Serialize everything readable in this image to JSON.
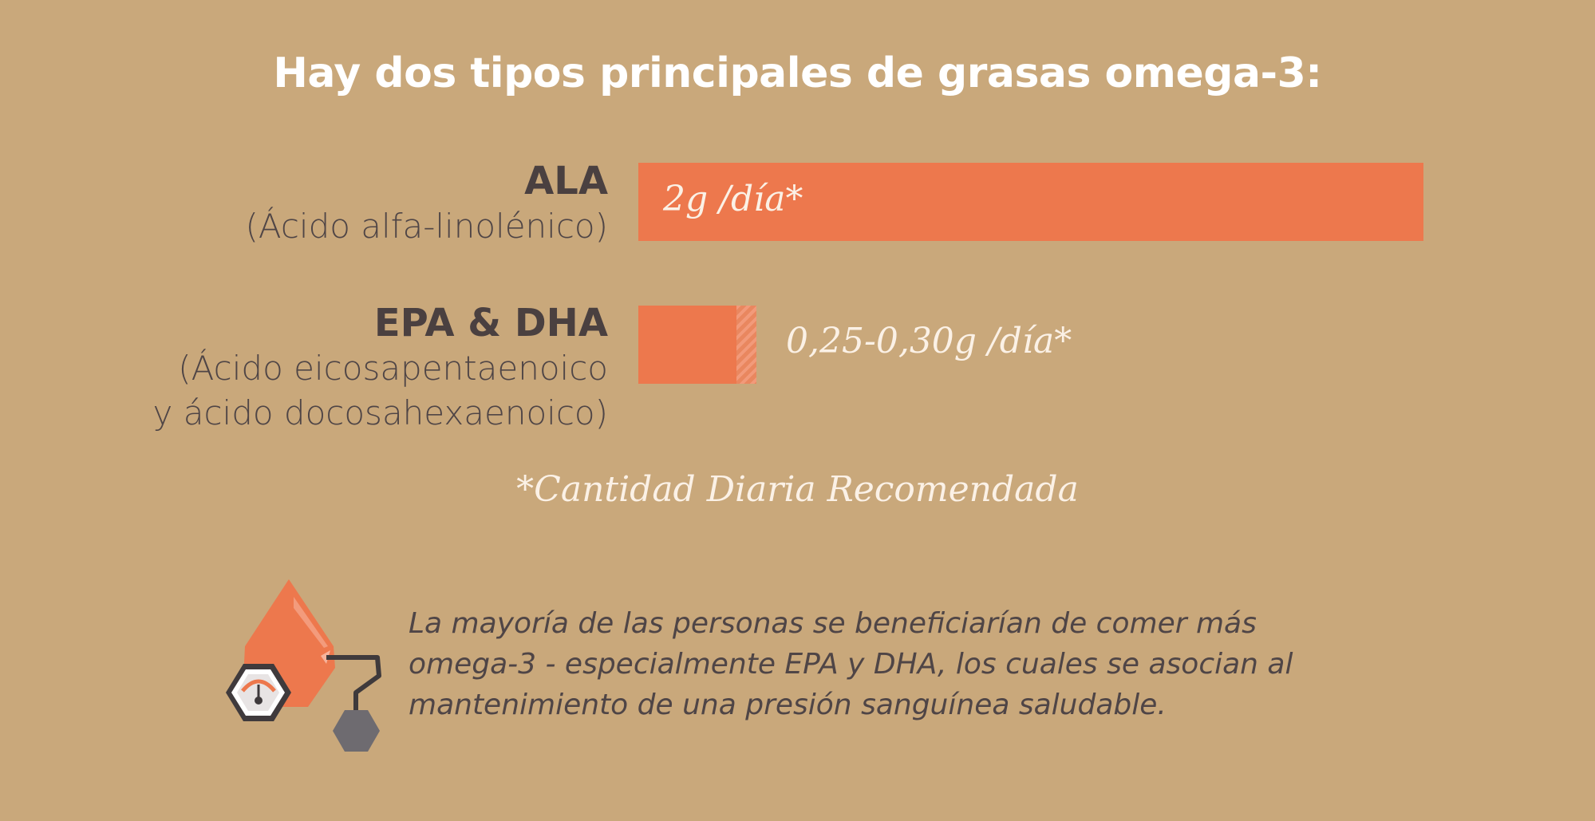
{
  "chart_data": {
    "type": "bar",
    "orientation": "horizontal",
    "title": "Hay dos tipos principales de grasas omega-3:",
    "unit": "g/día",
    "xlim": [
      0,
      2
    ],
    "categories": [
      {
        "code": "ALA",
        "full_name_lines": [
          "(Ácido alfa-linolénico)"
        ],
        "value": 2.0,
        "label": "2g /día*"
      },
      {
        "code": "EPA & DHA",
        "full_name_lines": [
          "(Ácido eicosapentaenoico",
          "y ácido docosahexaenoico)"
        ],
        "value": [
          0.25,
          0.3
        ],
        "label": "0,25-0,30g /día*"
      }
    ],
    "footnote": "*Cantidad Diaria Recomendada",
    "colors": {
      "bar": "#ed784d",
      "range_hatch": "#f29a7a",
      "background": "#c9a87b"
    }
  },
  "note": {
    "icon": "blood-pressure-drop-icon",
    "lines": [
      "La mayoría de las personas se beneficiarían de comer más",
      "omega-3 - especialmente EPA y DHA, los cuales se asocian al",
      "mantenimiento de una presión sanguínea saludable."
    ]
  }
}
